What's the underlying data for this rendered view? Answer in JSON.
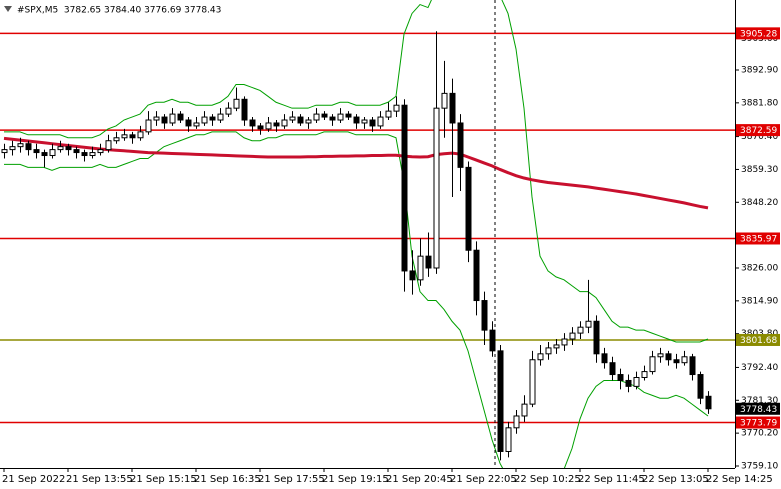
{
  "chart_data": {
    "type": "candlestick",
    "title": "#SPX,M5  3782.65 3784.40 3776.69 3778.43",
    "categories": [
      "21 Sep 2022",
      null,
      null,
      null,
      null,
      null,
      null,
      null,
      "21 Sep 13:55",
      null,
      null,
      null,
      null,
      null,
      null,
      null,
      "21 Sep 15:15",
      null,
      null,
      null,
      null,
      null,
      null,
      null,
      "21 Sep 16:35",
      null,
      null,
      null,
      null,
      null,
      null,
      null,
      "21 Sep 17:55",
      null,
      null,
      null,
      null,
      null,
      null,
      null,
      "21 Sep 19:15",
      null,
      null,
      null,
      null,
      null,
      null,
      null,
      "21 Sep 20:45",
      null,
      null,
      null,
      null,
      null,
      null,
      null,
      "21 Sep 22:05",
      null,
      null,
      null,
      null,
      null,
      null,
      null,
      "22 Sep 10:25",
      null,
      null,
      null,
      null,
      null,
      null,
      null,
      "22 Sep 11:45",
      null,
      null,
      null,
      null,
      null,
      null,
      null,
      "22 Sep 13:05",
      null,
      null,
      null,
      null,
      null,
      null,
      null,
      "22 Sep 14:25"
    ],
    "ohlc": [
      [
        3865,
        3868,
        3863,
        3866
      ],
      [
        3866,
        3869,
        3864,
        3867
      ],
      [
        3867,
        3870,
        3865,
        3868
      ],
      [
        3868,
        3869,
        3864,
        3866
      ],
      [
        3866,
        3868,
        3863,
        3865
      ],
      [
        3865,
        3866,
        3860,
        3864
      ],
      [
        3864,
        3868,
        3863,
        3866
      ],
      [
        3866,
        3869,
        3865,
        3867
      ],
      [
        3867,
        3868,
        3864,
        3866
      ],
      [
        3866,
        3867,
        3863,
        3865
      ],
      [
        3865,
        3866,
        3862,
        3864
      ],
      [
        3864,
        3867,
        3863,
        3865
      ],
      [
        3865,
        3868,
        3864,
        3866
      ],
      [
        3866,
        3871,
        3865,
        3869
      ],
      [
        3869,
        3872,
        3868,
        3870
      ],
      [
        3870,
        3873,
        3869,
        3871
      ],
      [
        3871,
        3872,
        3868,
        3870
      ],
      [
        3870,
        3874,
        3869,
        3872
      ],
      [
        3872,
        3879,
        3871,
        3876
      ],
      [
        3876,
        3879,
        3874,
        3877
      ],
      [
        3877,
        3878,
        3873,
        3875
      ],
      [
        3875,
        3880,
        3874,
        3878
      ],
      [
        3878,
        3879,
        3875,
        3876
      ],
      [
        3876,
        3877,
        3872,
        3874
      ],
      [
        3874,
        3877,
        3873,
        3875
      ],
      [
        3875,
        3879,
        3874,
        3877
      ],
      [
        3877,
        3878,
        3874,
        3876
      ],
      [
        3876,
        3880,
        3875,
        3878
      ],
      [
        3878,
        3882,
        3877,
        3880
      ],
      [
        3880,
        3887,
        3879,
        3883
      ],
      [
        3883,
        3884,
        3874,
        3876
      ],
      [
        3876,
        3877,
        3872,
        3874
      ],
      [
        3874,
        3875,
        3871,
        3873
      ],
      [
        3873,
        3877,
        3872,
        3875
      ],
      [
        3875,
        3876,
        3872,
        3874
      ],
      [
        3874,
        3878,
        3873,
        3876
      ],
      [
        3876,
        3879,
        3875,
        3877
      ],
      [
        3877,
        3878,
        3874,
        3875
      ],
      [
        3875,
        3877,
        3873,
        3876
      ],
      [
        3876,
        3880,
        3875,
        3878
      ],
      [
        3878,
        3879,
        3876,
        3877
      ],
      [
        3877,
        3878,
        3874,
        3876
      ],
      [
        3876,
        3880,
        3875,
        3878
      ],
      [
        3878,
        3879,
        3876,
        3877
      ],
      [
        3877,
        3878,
        3873,
        3875
      ],
      [
        3875,
        3877,
        3873,
        3876
      ],
      [
        3876,
        3877,
        3872,
        3874
      ],
      [
        3874,
        3879,
        3873,
        3877
      ],
      [
        3877,
        3882,
        3876,
        3879
      ],
      [
        3879,
        3884,
        3877,
        3881
      ],
      [
        3881,
        3883,
        3818,
        3825
      ],
      [
        3825,
        3832,
        3817,
        3822
      ],
      [
        3822,
        3836,
        3820,
        3830
      ],
      [
        3830,
        3838,
        3823,
        3826
      ],
      [
        3826,
        3906,
        3824,
        3880
      ],
      [
        3880,
        3896,
        3870,
        3885
      ],
      [
        3885,
        3890,
        3850,
        3875
      ],
      [
        3875,
        3878,
        3852,
        3860
      ],
      [
        3860,
        3862,
        3828,
        3832
      ],
      [
        3832,
        3835,
        3810,
        3815
      ],
      [
        3815,
        3818,
        3800,
        3805
      ],
      [
        3805,
        3808,
        3796,
        3798
      ],
      [
        3798,
        3800,
        3761,
        3764
      ],
      [
        3764,
        3774,
        3762,
        3772
      ],
      [
        3772,
        3778,
        3770,
        3776
      ],
      [
        3776,
        3783,
        3774,
        3780
      ],
      [
        3780,
        3798,
        3779,
        3795
      ],
      [
        3795,
        3800,
        3793,
        3797
      ],
      [
        3797,
        3801,
        3795,
        3799
      ],
      [
        3799,
        3802,
        3797,
        3800
      ],
      [
        3800,
        3804,
        3798,
        3802
      ],
      [
        3802,
        3806,
        3800,
        3804
      ],
      [
        3804,
        3808,
        3802,
        3806
      ],
      [
        3806,
        3822,
        3804,
        3808
      ],
      [
        3808,
        3810,
        3794,
        3797
      ],
      [
        3797,
        3799,
        3792,
        3794
      ],
      [
        3794,
        3796,
        3788,
        3790
      ],
      [
        3790,
        3792,
        3785,
        3788
      ],
      [
        3788,
        3790,
        3784,
        3786
      ],
      [
        3786,
        3791,
        3785,
        3789
      ],
      [
        3789,
        3793,
        3788,
        3791
      ],
      [
        3791,
        3798,
        3790,
        3796
      ],
      [
        3796,
        3799,
        3794,
        3797
      ],
      [
        3797,
        3798,
        3793,
        3795
      ],
      [
        3795,
        3797,
        3792,
        3794
      ],
      [
        3794,
        3798,
        3793,
        3796
      ],
      [
        3796,
        3797,
        3788,
        3790
      ],
      [
        3790,
        3791,
        3780,
        3782
      ],
      [
        3782.65,
        3784.4,
        3776.69,
        3778.43
      ]
    ],
    "indicators": [
      {
        "color": "#00a000",
        "values": [
          3872,
          3872,
          3872,
          3871,
          3871,
          3871,
          3871,
          3871,
          3870,
          3870,
          3870,
          3870,
          3871,
          3873,
          3874,
          3876,
          3877,
          3878,
          3881,
          3882,
          3882,
          3883,
          3882,
          3882,
          3881,
          3881,
          3881,
          3882,
          3884,
          3888,
          3888,
          3887,
          3886,
          3884,
          3882,
          3881,
          3880,
          3880,
          3880,
          3881,
          3881,
          3881,
          3882,
          3882,
          3881,
          3881,
          3881,
          3881,
          3882,
          3884,
          3905,
          3912,
          3915,
          3914,
          3920,
          3925,
          3930,
          3930,
          3928,
          3925,
          3922,
          3920,
          3918,
          3912,
          3900,
          3880,
          3850,
          3830,
          3825,
          3823,
          3822,
          3820,
          3818,
          3818,
          3816,
          3812,
          3808,
          3806,
          3806,
          3805,
          3805,
          3804,
          3803,
          3802,
          3801,
          3801,
          3801,
          3801,
          3802
        ]
      },
      {
        "color": "#00a000",
        "values": [
          3861,
          3861,
          3861,
          3860,
          3860,
          3860,
          3859,
          3860,
          3860,
          3860,
          3860,
          3860,
          3861,
          3860,
          3860,
          3861,
          3862,
          3863,
          3863,
          3865,
          3867,
          3868,
          3869,
          3870,
          3871,
          3871,
          3872,
          3872,
          3872,
          3872,
          3870,
          3869,
          3869,
          3870,
          3870,
          3871,
          3871,
          3871,
          3871,
          3871,
          3872,
          3872,
          3872,
          3872,
          3871,
          3871,
          3871,
          3871,
          3871,
          3870,
          3855,
          3830,
          3818,
          3815,
          3815,
          3812,
          3808,
          3805,
          3798,
          3788,
          3778,
          3768,
          3760,
          3755,
          3752,
          3750,
          3752,
          3754,
          3756,
          3756,
          3758,
          3765,
          3775,
          3782,
          3786,
          3788,
          3788,
          3788,
          3787,
          3786,
          3784,
          3783,
          3782,
          3782,
          3783,
          3782,
          3780,
          3778,
          3776
        ]
      },
      {
        "color": "#c8102e",
        "width": 3,
        "values": [
          3869.8,
          3869.5,
          3869.2,
          3868.9,
          3868.6,
          3868.3,
          3868.0,
          3867.7,
          3867.4,
          3867.1,
          3866.8,
          3866.5,
          3866.2,
          3866.0,
          3865.8,
          3865.6,
          3865.4,
          3865.2,
          3865.0,
          3864.9,
          3864.8,
          3864.7,
          3864.6,
          3864.5,
          3864.4,
          3864.3,
          3864.2,
          3864.1,
          3864.0,
          3863.9,
          3863.8,
          3863.7,
          3863.6,
          3863.5,
          3863.5,
          3863.5,
          3863.5,
          3863.5,
          3863.6,
          3863.6,
          3863.7,
          3863.7,
          3863.8,
          3863.8,
          3863.9,
          3863.9,
          3864.0,
          3864.0,
          3864.1,
          3864.1,
          3863.8,
          3863.6,
          3863.5,
          3863.6,
          3864.3,
          3864.6,
          3864.8,
          3864.5,
          3863.5,
          3862.5,
          3861.5,
          3860.5,
          3859.3,
          3858.2,
          3857.2,
          3856.4,
          3855.8,
          3855.3,
          3854.9,
          3854.6,
          3854.3,
          3854.0,
          3853.7,
          3853.4,
          3853.0,
          3852.6,
          3852.2,
          3851.8,
          3851.4,
          3851.0,
          3850.5,
          3850.0,
          3849.5,
          3849.0,
          3848.5,
          3848.0,
          3847.4,
          3846.8,
          3846.3
        ]
      }
    ],
    "levels": [
      {
        "value": 3905.28,
        "color": "#e00000"
      },
      {
        "value": 3872.59,
        "color": "#e00000"
      },
      {
        "value": 3835.97,
        "color": "#e00000"
      },
      {
        "value": 3801.68,
        "color": "#8b8b00"
      },
      {
        "value": 3773.79,
        "color": "#e00000"
      }
    ],
    "last_price": {
      "value": 3778.43,
      "color": "#000000"
    },
    "ylim": [
      3758.42,
      3916.55
    ],
    "yticks": [
      {
        "value": 3759.1,
        "label": "3759.10"
      },
      {
        "value": 3770.2,
        "label": "3770.20"
      },
      {
        "value": 3781.3,
        "label": "3781.30"
      },
      {
        "value": 3792.4,
        "label": "3792.40"
      },
      {
        "value": 3803.8,
        "label": "3803.80"
      },
      {
        "value": 3814.9,
        "label": "3814.90"
      },
      {
        "value": 3826.0,
        "label": "3826.00"
      },
      {
        "value": 3848.2,
        "label": "3848.20"
      },
      {
        "value": 3859.3,
        "label": "3859.30"
      },
      {
        "value": 3870.4,
        "label": "3870.40"
      },
      {
        "value": 3881.8,
        "label": "3881.80"
      },
      {
        "value": 3892.9,
        "label": "3892.90"
      },
      {
        "value": 3903.6,
        "label": "3903.60"
      }
    ],
    "grid": false
  }
}
